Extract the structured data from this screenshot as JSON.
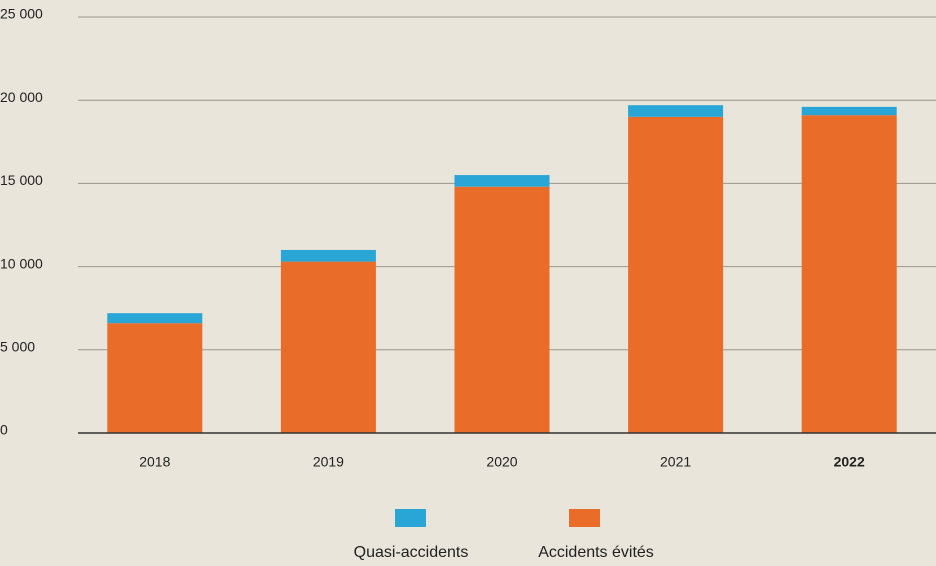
{
  "chart_data": {
    "type": "bar",
    "stacked": true,
    "categories": [
      "2018",
      "2019",
      "2020",
      "2021",
      "2022"
    ],
    "series": [
      {
        "name": "Quasi-accidents",
        "color": "#29a6d5",
        "values": [
          600,
          700,
          700,
          700,
          500
        ]
      },
      {
        "name": "Accidents évités",
        "color": "#e96c28",
        "values": [
          6600,
          10300,
          14800,
          19000,
          19100
        ]
      }
    ],
    "ylim": [
      0,
      25000
    ],
    "yticks": [
      0,
      {
        "value": 5000,
        "label": "5 000"
      },
      {
        "value": 10000,
        "label": "10 000"
      },
      {
        "value": 15000,
        "label": "15 000"
      },
      {
        "value": 20000,
        "label": "20 000"
      },
      {
        "value": 25000,
        "label": "25 000"
      }
    ],
    "grid": true
  }
}
